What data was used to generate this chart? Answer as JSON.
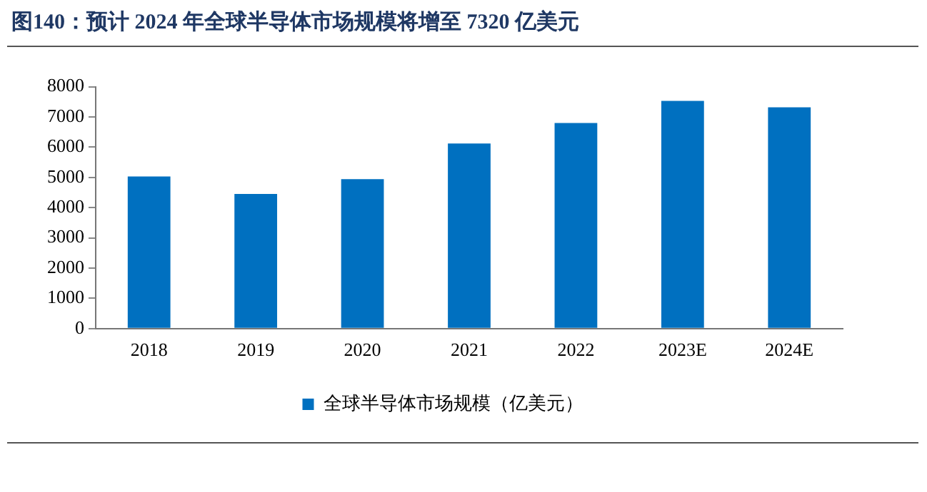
{
  "chart_data": {
    "type": "bar",
    "title": "图140：预计 2024 年全球半导体市场规模将增至 7320 亿美元",
    "categories": [
      "2018",
      "2019",
      "2020",
      "2021",
      "2022",
      "2023E",
      "2024E"
    ],
    "series": [
      {
        "name": "全球半导体市场规模（亿美元）",
        "color": "#0070c0",
        "values": [
          5030,
          4450,
          4940,
          6120,
          6800,
          7530,
          7320
        ]
      }
    ],
    "ylim": [
      0,
      8000
    ],
    "yticks": [
      0,
      1000,
      2000,
      3000,
      4000,
      5000,
      6000,
      7000,
      8000
    ],
    "grid": false,
    "legend": "bottom"
  }
}
